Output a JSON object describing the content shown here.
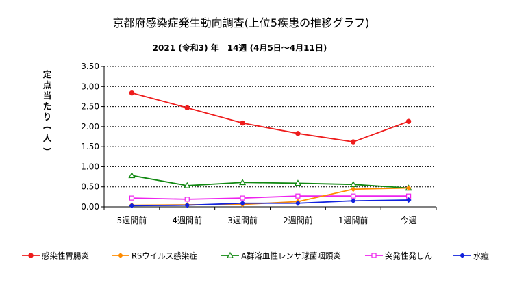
{
  "chart_data": {
    "type": "line",
    "title": "京都府感染症発生動向調査(上位5疾患の推移グラフ)",
    "subtitle": "2021 (令和3) 年　14週 (4月5日～4月11日)",
    "ylabel": "定点当たり(人)",
    "xlabel": "",
    "categories": [
      "5週間前",
      "4週間前",
      "3週間前",
      "2週間前",
      "1週間前",
      "今週"
    ],
    "ylim": [
      0,
      3.5
    ],
    "yticks": [
      "0.00",
      "0.50",
      "1.00",
      "1.50",
      "2.00",
      "2.50",
      "3.00",
      "3.50"
    ],
    "grid": "horizontal-dashed",
    "legend": "bottom",
    "series": [
      {
        "name": "感染性胃腸炎",
        "color": "#ee1c1c",
        "marker": "circle",
        "values": [
          2.84,
          2.47,
          2.09,
          1.83,
          1.62,
          2.13
        ]
      },
      {
        "name": "RSウイルス感染症",
        "color": "#ff8c00",
        "marker": "diamond",
        "values": [
          0.04,
          0.05,
          0.06,
          0.13,
          0.44,
          0.47
        ]
      },
      {
        "name": "A群溶血性レンサ球菌咽頭炎",
        "color": "#118811",
        "marker": "triangle",
        "values": [
          0.78,
          0.53,
          0.61,
          0.59,
          0.56,
          0.47
        ]
      },
      {
        "name": "突発性発しん",
        "color": "#ee22ee",
        "marker": "square",
        "values": [
          0.22,
          0.19,
          0.22,
          0.27,
          0.27,
          0.27
        ]
      },
      {
        "name": "水痘",
        "color": "#1122dd",
        "marker": "diamond",
        "values": [
          0.03,
          0.04,
          0.09,
          0.09,
          0.15,
          0.17
        ]
      }
    ]
  }
}
